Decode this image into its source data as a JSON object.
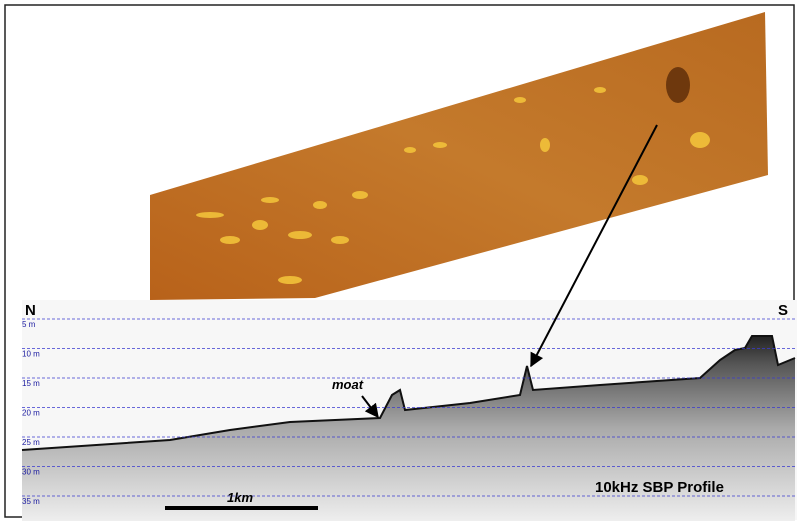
{
  "profile": {
    "north": "N",
    "south": "S",
    "depth_labels": [
      "5 m",
      "10 m",
      "15 m",
      "20 m",
      "25 m",
      "30 m",
      "35 m"
    ],
    "annotation": "moat",
    "scale_bar": "1km",
    "title": "10kHz SBP Profile"
  }
}
